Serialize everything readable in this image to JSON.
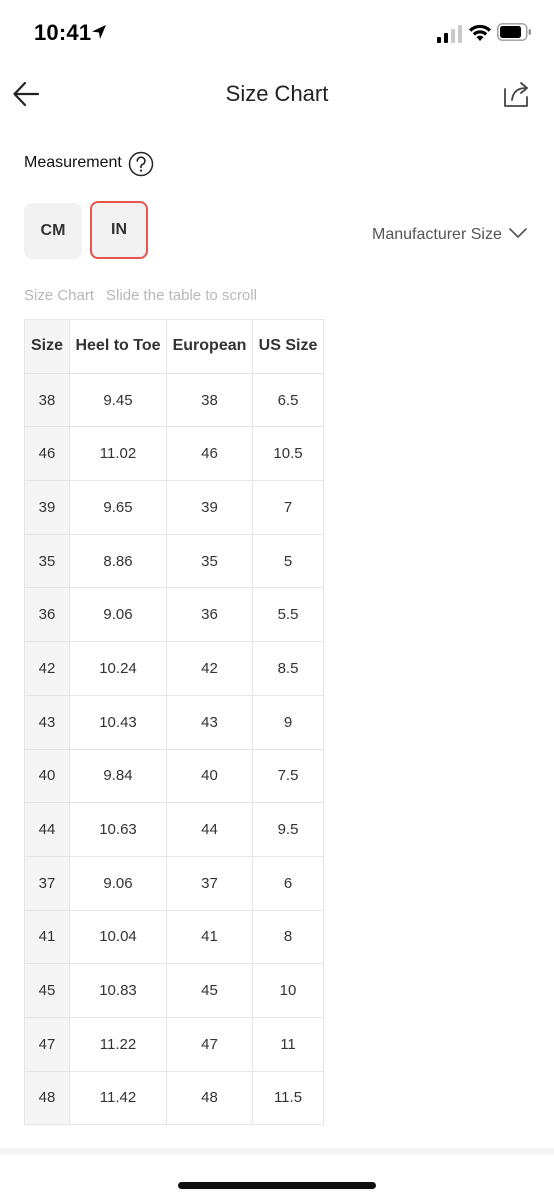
{
  "status_bar": {
    "time": "10:41",
    "icons": [
      "location-arrow-icon",
      "signal-icon",
      "wifi-icon",
      "battery-icon"
    ]
  },
  "nav": {
    "title": "Size Chart",
    "back_icon": "arrow-left-icon",
    "share_icon": "share-icon"
  },
  "measurement": {
    "label": "Measurement",
    "help_icon": "question-circle-icon",
    "units": [
      {
        "label": "CM",
        "selected": false
      },
      {
        "label": "IN",
        "selected": true
      }
    ],
    "selected_color": "#e8544e",
    "size_type": "Manufacturer Size"
  },
  "hint": {
    "title": "Size Chart",
    "instruction": "Slide the table to scroll"
  },
  "table": {
    "headers": [
      "Size",
      "Heel to Toe",
      "European",
      "US Size"
    ],
    "rows": [
      [
        "38",
        "9.45",
        "38",
        "6.5"
      ],
      [
        "46",
        "11.02",
        "46",
        "10.5"
      ],
      [
        "39",
        "9.65",
        "39",
        "7"
      ],
      [
        "35",
        "8.86",
        "35",
        "5"
      ],
      [
        "36",
        "9.06",
        "36",
        "5.5"
      ],
      [
        "42",
        "10.24",
        "42",
        "8.5"
      ],
      [
        "43",
        "10.43",
        "43",
        "9"
      ],
      [
        "40",
        "9.84",
        "40",
        "7.5"
      ],
      [
        "44",
        "10.63",
        "44",
        "9.5"
      ],
      [
        "37",
        "9.06",
        "37",
        "6"
      ],
      [
        "41",
        "10.04",
        "41",
        "8"
      ],
      [
        "45",
        "10.83",
        "45",
        "10"
      ],
      [
        "47",
        "11.22",
        "47",
        "11"
      ],
      [
        "48",
        "11.42",
        "48",
        "11.5"
      ]
    ]
  }
}
